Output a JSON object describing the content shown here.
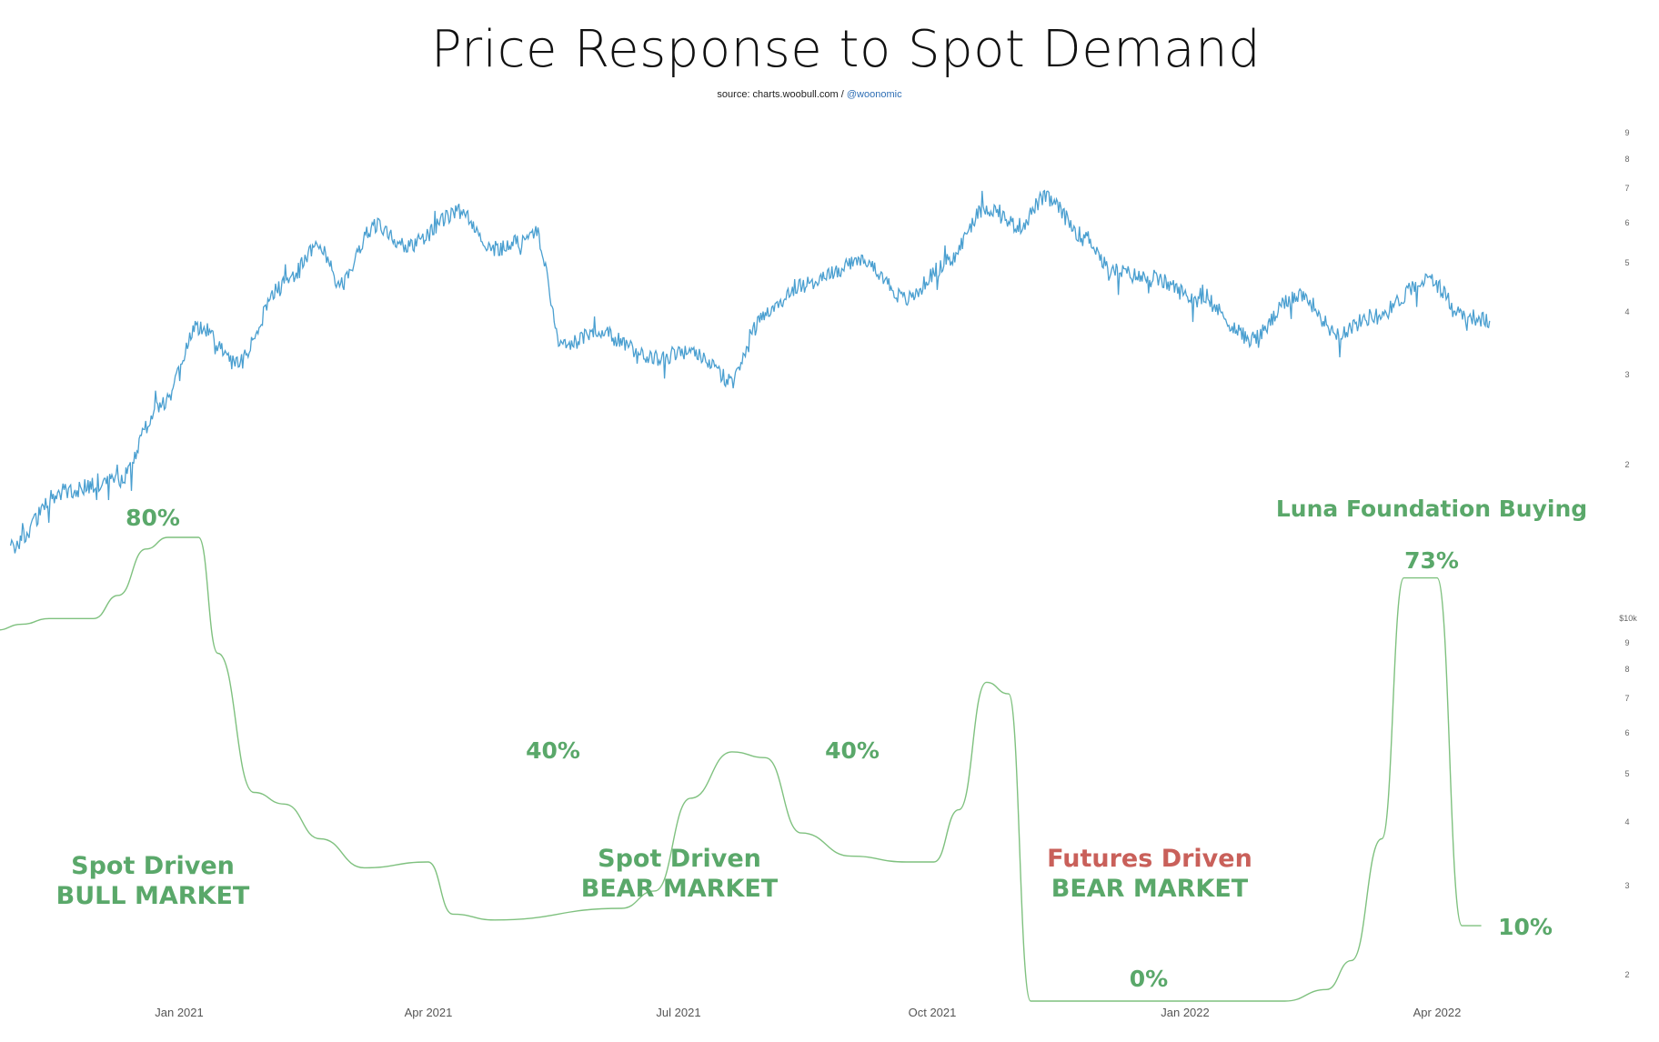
{
  "title": "Price Response to Spot Demand",
  "source": {
    "prefix": "source: charts.woobull.com / ",
    "handle": "@woonomic"
  },
  "colors": {
    "price": "#4a9fd0",
    "ratio": "#7fc17f",
    "green_text": "#5aa86a",
    "red_text": "#c9605a"
  },
  "chart_data": {
    "type": "line",
    "x_ticks": [
      "Jan 2021",
      "Apr 2021",
      "Jul 2021",
      "Oct 2021",
      "Jan 2022",
      "Apr 2022"
    ],
    "y_axis_price": {
      "scale": "log",
      "unit_label": "$10k",
      "ticks": [
        "9",
        "8",
        "7",
        "6",
        "5",
        "4",
        "3",
        "2"
      ]
    },
    "y_axis_price_upper": {
      "scale": "log",
      "ticks": [
        "9",
        "8",
        "7",
        "6",
        "5",
        "4",
        "3",
        "2"
      ]
    },
    "series": [
      {
        "key": "price",
        "x": [
          "2020-11-01",
          "2020-11-20",
          "2020-12-10",
          "2020-12-27",
          "2021-01-08",
          "2021-01-22",
          "2021-02-08",
          "2021-02-21",
          "2021-02-28",
          "2021-03-13",
          "2021-03-25",
          "2021-04-13",
          "2021-04-25",
          "2021-05-10",
          "2021-05-19",
          "2021-06-01",
          "2021-06-22",
          "2021-07-05",
          "2021-07-20",
          "2021-08-01",
          "2021-08-14",
          "2021-09-06",
          "2021-09-21",
          "2021-10-05",
          "2021-10-20",
          "2021-11-01",
          "2021-11-10",
          "2021-11-25",
          "2021-12-04",
          "2021-12-20",
          "2022-01-05",
          "2022-01-24",
          "2022-02-10",
          "2022-02-24",
          "2022-03-10",
          "2022-03-29",
          "2022-04-11",
          "2022-04-20"
        ],
        "y": [
          1.4,
          1.8,
          1.9,
          2.7,
          3.8,
          3.2,
          4.6,
          5.5,
          4.6,
          6.0,
          5.5,
          6.4,
          5.4,
          5.8,
          3.5,
          3.7,
          3.3,
          3.4,
          3.0,
          4.0,
          4.6,
          5.1,
          4.3,
          5.0,
          6.5,
          6.0,
          6.8,
          5.7,
          4.9,
          4.7,
          4.3,
          3.6,
          4.4,
          3.7,
          4.0,
          4.7,
          4.0,
          3.9
        ]
      },
      {
        "key": "ratio",
        "x": [
          "2020-10-27",
          "2020-11-05",
          "2020-11-15",
          "2020-12-01",
          "2020-12-10",
          "2020-12-20",
          "2020-12-28",
          "2021-01-08",
          "2021-01-15",
          "2021-01-28",
          "2021-02-08",
          "2021-02-21",
          "2021-03-09",
          "2021-04-01",
          "2021-04-10",
          "2021-04-25",
          "2021-06-10",
          "2021-06-22",
          "2021-07-05",
          "2021-07-20",
          "2021-08-01",
          "2021-08-14",
          "2021-09-01",
          "2021-09-21",
          "2021-10-01",
          "2021-10-10",
          "2021-10-20",
          "2021-10-28",
          "2021-11-05",
          "2021-12-15",
          "2022-01-05",
          "2022-02-05",
          "2022-02-20",
          "2022-03-01",
          "2022-03-12",
          "2022-03-20",
          "2022-04-01",
          "2022-04-10",
          "2022-04-17"
        ],
        "y": [
          64,
          65,
          66,
          66,
          70,
          78,
          80,
          80,
          60,
          36,
          34,
          28,
          23,
          24,
          15,
          14,
          16,
          19,
          35,
          43,
          42,
          29,
          25,
          24,
          24,
          33,
          55,
          53,
          0,
          0,
          0,
          0,
          2,
          7,
          28,
          73,
          73,
          13,
          13
        ]
      }
    ],
    "annotations": [
      {
        "label": "80%"
      },
      {
        "label": "40%"
      },
      {
        "label": "40%"
      },
      {
        "label": "Luna Foundation Buying"
      },
      {
        "label": "73%"
      },
      {
        "label": "0%"
      },
      {
        "label": "10%"
      }
    ],
    "regions": [
      {
        "line1": "Spot Driven",
        "line2": "BULL MARKET"
      },
      {
        "line1": "Spot Driven",
        "line2": "BEAR MARKET"
      },
      {
        "line1": "Futures Driven",
        "line2": "BEAR MARKET"
      }
    ]
  }
}
